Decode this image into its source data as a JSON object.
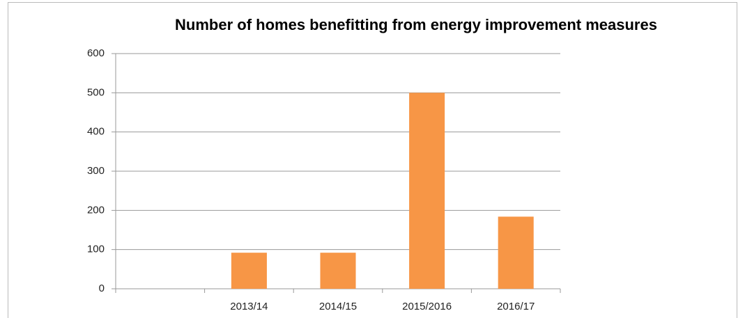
{
  "chart_data": {
    "type": "bar",
    "title": "Number of homes benefitting from energy improvement measures",
    "categories": [
      null,
      "2013/14",
      "2014/15",
      "2015/2016",
      "2016/17"
    ],
    "values": [
      null,
      92,
      92,
      500,
      184
    ],
    "color": "#f79646",
    "ylim": [
      0,
      600
    ],
    "yticks": [
      0,
      100,
      200,
      300,
      400,
      500,
      600
    ],
    "grid": true
  }
}
